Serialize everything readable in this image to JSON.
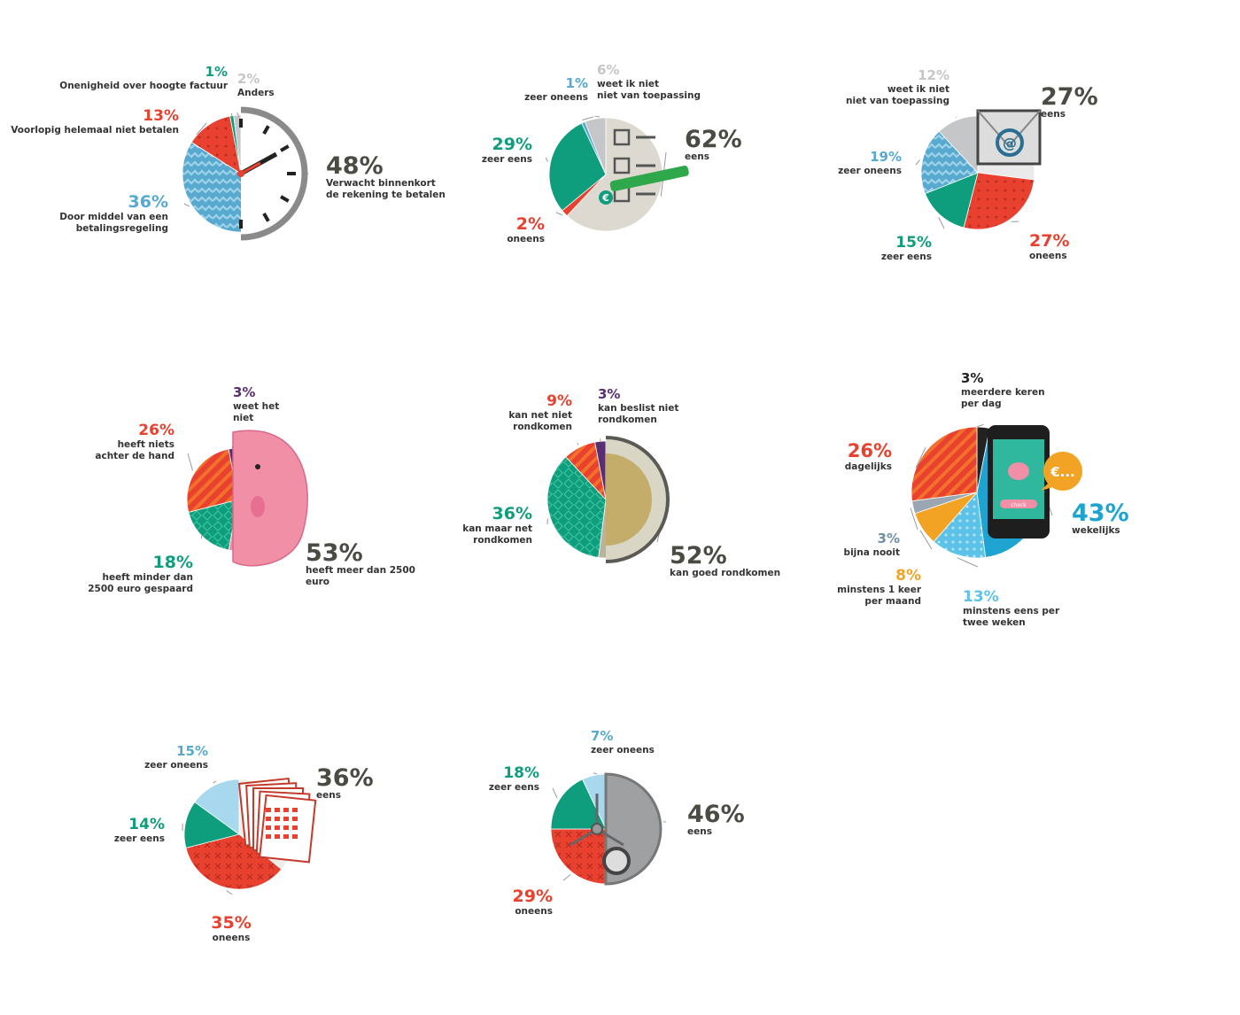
{
  "colors": {
    "red": "#e8412f",
    "green": "#0e9e7d",
    "blue": "#58a9cf",
    "lightblue": "#5cc2e8",
    "gray": "#c5c6c7",
    "purple": "#5a2e72",
    "orange": "#f2a324",
    "dark": "#4b4b43",
    "black": "#222222",
    "cyan": "#1fa3d1",
    "pink": "#f08fa6",
    "coin": "#b8b39a",
    "silver": "#9fa0a2",
    "slate": "#6f8fa3"
  },
  "chart_data": [
    {
      "type": "pie",
      "icon": "clock-icon",
      "series": [
        {
          "value": 48,
          "pct_label": "48%",
          "label_lines": [
            "Verwacht binnenkort",
            "de rekening te betalen"
          ],
          "color": "dark"
        },
        {
          "value": 36,
          "pct_label": "36%",
          "label_lines": [
            "Door middel van een",
            "betalingsregeling"
          ],
          "color": "blue"
        },
        {
          "value": 13,
          "pct_label": "13%",
          "label_lines": [
            "Voorlopig helemaal niet betalen"
          ],
          "color": "red"
        },
        {
          "value": 1,
          "pct_label": "1%",
          "label_lines": [
            "Onenigheid over hoogte factuur"
          ],
          "color": "green"
        },
        {
          "value": 2,
          "pct_label": "2%",
          "label_lines": [
            "Anders"
          ],
          "color": "gray"
        }
      ]
    },
    {
      "type": "pie",
      "icon": "checklist-pencil-icon",
      "series": [
        {
          "value": 62,
          "pct_label": "62%",
          "label_lines": [
            "eens"
          ],
          "color": "dark"
        },
        {
          "value": 2,
          "pct_label": "2%",
          "label_lines": [
            "oneens"
          ],
          "color": "red"
        },
        {
          "value": 29,
          "pct_label": "29%",
          "label_lines": [
            "zeer eens"
          ],
          "color": "green"
        },
        {
          "value": 1,
          "pct_label": "1%",
          "label_lines": [
            "zeer oneens"
          ],
          "color": "blue"
        },
        {
          "value": 6,
          "pct_label": "6%",
          "label_lines": [
            "weet ik niet",
            "niet van toepassing"
          ],
          "color": "gray"
        }
      ]
    },
    {
      "type": "pie",
      "icon": "email-envelope-icon",
      "series": [
        {
          "value": 27,
          "pct_label": "27%",
          "label_lines": [
            "eens"
          ],
          "color": "dark"
        },
        {
          "value": 27,
          "pct_label": "27%",
          "label_lines": [
            "oneens"
          ],
          "color": "red"
        },
        {
          "value": 15,
          "pct_label": "15%",
          "label_lines": [
            "zeer eens"
          ],
          "color": "green"
        },
        {
          "value": 19,
          "pct_label": "19%",
          "label_lines": [
            "zeer oneens"
          ],
          "color": "blue"
        },
        {
          "value": 12,
          "pct_label": "12%",
          "label_lines": [
            "weet ik niet",
            "niet van toepassing"
          ],
          "color": "gray"
        }
      ]
    },
    {
      "type": "pie",
      "icon": "piggy-bank-icon",
      "series": [
        {
          "value": 53,
          "pct_label": "53%",
          "label_lines": [
            "heeft meer dan 2500",
            "euro"
          ],
          "color": "dark"
        },
        {
          "value": 18,
          "pct_label": "18%",
          "label_lines": [
            "heeft minder dan",
            "2500 euro gespaard"
          ],
          "color": "green"
        },
        {
          "value": 26,
          "pct_label": "26%",
          "label_lines": [
            "heeft niets",
            "achter de hand"
          ],
          "color": "red"
        },
        {
          "value": 3,
          "pct_label": "3%",
          "label_lines": [
            "weet het",
            "niet"
          ],
          "color": "purple"
        }
      ]
    },
    {
      "type": "pie",
      "icon": "euro-coin-icon",
      "series": [
        {
          "value": 52,
          "pct_label": "52%",
          "label_lines": [
            "kan goed rondkomen"
          ],
          "color": "dark"
        },
        {
          "value": 36,
          "pct_label": "36%",
          "label_lines": [
            "kan maar net",
            "rondkomen"
          ],
          "color": "green"
        },
        {
          "value": 9,
          "pct_label": "9%",
          "label_lines": [
            "kan net niet",
            "rondkomen"
          ],
          "color": "red"
        },
        {
          "value": 3,
          "pct_label": "3%",
          "label_lines": [
            "kan beslist niet",
            "rondkomen"
          ],
          "color": "purple"
        }
      ]
    },
    {
      "type": "pie",
      "icon": "smartphone-icon",
      "phone_button": "check",
      "bubble_text": "€...",
      "series": [
        {
          "value": 3,
          "pct_label": "3%",
          "label_lines": [
            "meerdere keren",
            "per dag"
          ],
          "color": "black"
        },
        {
          "value": 43,
          "pct_label": "43%",
          "label_lines": [
            "wekelijks"
          ],
          "color": "cyan"
        },
        {
          "value": 13,
          "pct_label": "13%",
          "label_lines": [
            "minstens eens per",
            "twee weken"
          ],
          "color": "lightblue"
        },
        {
          "value": 8,
          "pct_label": "8%",
          "label_lines": [
            "minstens 1 keer",
            "per maand"
          ],
          "color": "orange"
        },
        {
          "value": 3,
          "pct_label": "3%",
          "label_lines": [
            "bijna nooit"
          ],
          "color": "slate"
        },
        {
          "value": 26,
          "pct_label": "26%",
          "label_lines": [
            "dagelijks"
          ],
          "color": "red"
        }
      ]
    },
    {
      "type": "pie",
      "icon": "calendar-icon",
      "series": [
        {
          "value": 36,
          "pct_label": "36%",
          "label_lines": [
            "eens"
          ],
          "color": "dark"
        },
        {
          "value": 35,
          "pct_label": "35%",
          "label_lines": [
            "oneens"
          ],
          "color": "red"
        },
        {
          "value": 14,
          "pct_label": "14%",
          "label_lines": [
            "zeer eens"
          ],
          "color": "green"
        },
        {
          "value": 15,
          "pct_label": "15%",
          "label_lines": [
            "zeer oneens"
          ],
          "color": "blue"
        }
      ]
    },
    {
      "type": "pie",
      "icon": "safe-door-icon",
      "series": [
        {
          "value": 46,
          "pct_label": "46%",
          "label_lines": [
            "eens"
          ],
          "color": "dark"
        },
        {
          "value": 29,
          "pct_label": "29%",
          "label_lines": [
            "oneens"
          ],
          "color": "red"
        },
        {
          "value": 18,
          "pct_label": "18%",
          "label_lines": [
            "zeer eens"
          ],
          "color": "green"
        },
        {
          "value": 7,
          "pct_label": "7%",
          "label_lines": [
            "zeer oneens"
          ],
          "color": "blue"
        }
      ]
    }
  ]
}
